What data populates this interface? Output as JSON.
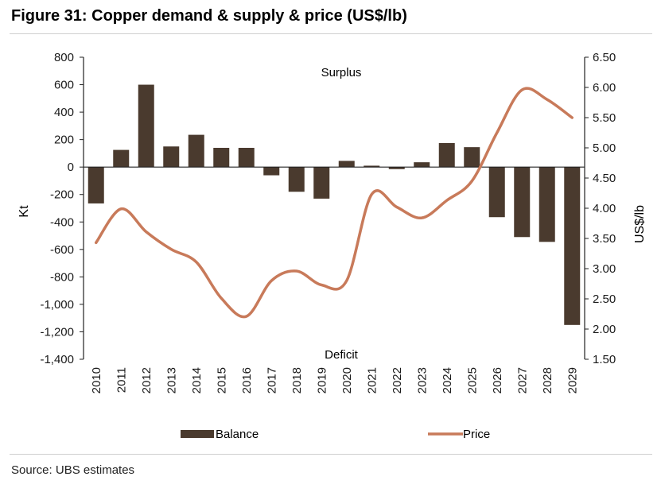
{
  "figure": {
    "title": "Figure 31: Copper demand & supply & price (US$/lb)",
    "source": "Source: UBS estimates"
  },
  "colors": {
    "balance": "#4a3a2e",
    "price": "#c87a5a",
    "axis": "#222222",
    "text": "#1a1a1a"
  },
  "chart_data": {
    "type": "bar",
    "title": "Copper demand & supply & price (US$/lb)",
    "categories": [
      "2010",
      "2011",
      "2012",
      "2013",
      "2014",
      "2015",
      "2016",
      "2017",
      "2018",
      "2019",
      "2020",
      "2021",
      "2022",
      "2023",
      "2024",
      "2025",
      "2026",
      "2027",
      "2028",
      "2029"
    ],
    "series": [
      {
        "name": "Balance",
        "type": "bar",
        "axis": "left",
        "values": [
          -265,
          125,
          600,
          150,
          235,
          140,
          140,
          -60,
          -180,
          -230,
          45,
          10,
          -15,
          35,
          175,
          145,
          -365,
          -510,
          -545,
          -1150
        ]
      },
      {
        "name": "Price",
        "type": "line",
        "axis": "right",
        "values": [
          3.43,
          3.99,
          3.61,
          3.32,
          3.11,
          2.51,
          2.21,
          2.8,
          2.96,
          2.73,
          2.8,
          4.23,
          4.02,
          3.84,
          4.13,
          4.45,
          5.25,
          5.96,
          5.8,
          5.5
        ]
      }
    ],
    "ylabel": "Kt",
    "ylabel_right": "US$/lb",
    "ylim": [
      -1400,
      800
    ],
    "ylim_right": [
      1.5,
      6.5
    ],
    "yticks": [
      800,
      600,
      400,
      200,
      0,
      -200,
      -400,
      -600,
      -800,
      -1000,
      -1200,
      -1400
    ],
    "ytick_labels": [
      "800",
      "600",
      "400",
      "200",
      "0",
      "-200",
      "-400",
      "-600",
      "-800",
      "-1,000",
      "-1,200",
      "-1,400"
    ],
    "yticks_right": [
      6.5,
      6.0,
      5.5,
      5.0,
      4.5,
      4.0,
      3.5,
      3.0,
      2.5,
      2.0,
      1.5
    ],
    "ytick_labels_right": [
      "6.50",
      "6.00",
      "5.50",
      "5.00",
      "4.50",
      "4.00",
      "3.50",
      "3.00",
      "2.50",
      "2.00",
      "1.50"
    ],
    "annotations": [
      {
        "text": "Surplus",
        "x_category": "2019",
        "y": 700
      },
      {
        "text": "Deficit",
        "x_category": "2019",
        "y": -1360
      }
    ],
    "legend": {
      "position": "bottom",
      "entries": [
        "Balance",
        "Price"
      ]
    },
    "grid": false
  }
}
